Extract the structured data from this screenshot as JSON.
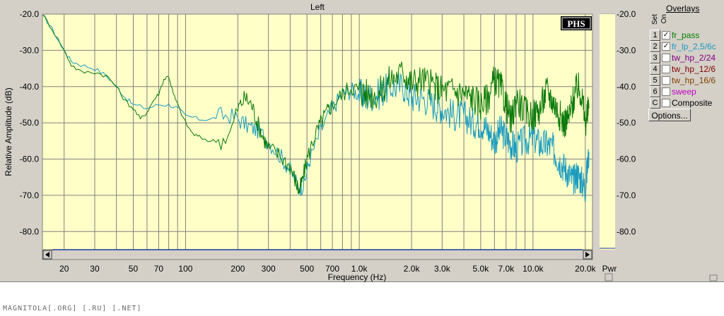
{
  "watermark": "MAGNITOLA[.ORG] [.RU] [.NET]",
  "overlays": {
    "title": "Overlays",
    "set_label": "Set",
    "on_label": "On",
    "options_label": "Options...",
    "items": [
      {
        "num": "1",
        "checked": true,
        "label": "fr_pass",
        "color": "#008000"
      },
      {
        "num": "2",
        "checked": true,
        "label": "fr_lp_2,5/6c",
        "color": "#1a9bc0"
      },
      {
        "num": "3",
        "checked": false,
        "label": "tw_hp_2/24",
        "color": "#800080"
      },
      {
        "num": "4",
        "checked": false,
        "label": "tw_hp_12/6",
        "color": "#800000"
      },
      {
        "num": "5",
        "checked": false,
        "label": "tw_hp_16/6",
        "color": "#804000"
      },
      {
        "num": "6",
        "checked": false,
        "label": "sweep",
        "color": "#c000c0"
      },
      {
        "num": "C",
        "checked": false,
        "label": "Composite",
        "color": "#000000"
      }
    ]
  },
  "pwr_label": "Pwr",
  "chart_data": {
    "type": "line",
    "title": "Left",
    "xlabel": "Frequency (Hz)",
    "ylabel": "Relative Amplitude (dB)",
    "x_scale": "log",
    "xlim": [
      15,
      22000
    ],
    "ylim": [
      -85,
      -20
    ],
    "x_ticks": [
      {
        "v": 20,
        "label": "20"
      },
      {
        "v": 30,
        "label": "30"
      },
      {
        "v": 50,
        "label": "50"
      },
      {
        "v": 70,
        "label": "70"
      },
      {
        "v": 100,
        "label": "100"
      },
      {
        "v": 200,
        "label": "200"
      },
      {
        "v": 300,
        "label": "300"
      },
      {
        "v": 500,
        "label": "500"
      },
      {
        "v": 700,
        "label": "700"
      },
      {
        "v": 1000,
        "label": "1.0k"
      },
      {
        "v": 2000,
        "label": "2.0k"
      },
      {
        "v": 3000,
        "label": "3.0k"
      },
      {
        "v": 5000,
        "label": "5.0k"
      },
      {
        "v": 7000,
        "label": "7.0k"
      },
      {
        "v": 10000,
        "label": "10.0k"
      },
      {
        "v": 20000,
        "label": "20.0k"
      }
    ],
    "y_ticks": [
      {
        "v": -20,
        "label": "-20.0"
      },
      {
        "v": -30,
        "label": "-30.0"
      },
      {
        "v": -40,
        "label": "-40.0"
      },
      {
        "v": -50,
        "label": "-50.0"
      },
      {
        "v": -60,
        "label": "-60.0"
      },
      {
        "v": -70,
        "label": "-70.0"
      },
      {
        "v": -80,
        "label": "-80.0"
      }
    ],
    "grid": true,
    "series": [
      {
        "name": "fr_pass",
        "color": "#0a7a0a",
        "points": [
          [
            15,
            -20
          ],
          [
            17,
            -24
          ],
          [
            20,
            -30
          ],
          [
            22,
            -34
          ],
          [
            25,
            -36
          ],
          [
            30,
            -36
          ],
          [
            35,
            -37
          ],
          [
            40,
            -40
          ],
          [
            45,
            -44
          ],
          [
            50,
            -46
          ],
          [
            55,
            -49
          ],
          [
            60,
            -47
          ],
          [
            65,
            -44
          ],
          [
            70,
            -42
          ],
          [
            75,
            -38
          ],
          [
            80,
            -37
          ],
          [
            85,
            -42
          ],
          [
            90,
            -45
          ],
          [
            100,
            -50
          ],
          [
            110,
            -53
          ],
          [
            120,
            -54
          ],
          [
            140,
            -55
          ],
          [
            160,
            -55
          ],
          [
            180,
            -53
          ],
          [
            200,
            -46
          ],
          [
            220,
            -43
          ],
          [
            240,
            -45
          ],
          [
            260,
            -50
          ],
          [
            280,
            -54
          ],
          [
            300,
            -57
          ],
          [
            350,
            -59
          ],
          [
            400,
            -62
          ],
          [
            430,
            -66
          ],
          [
            450,
            -69
          ],
          [
            470,
            -66
          ],
          [
            500,
            -60
          ],
          [
            550,
            -54
          ],
          [
            600,
            -50
          ],
          [
            650,
            -47
          ],
          [
            700,
            -45
          ],
          [
            800,
            -42
          ],
          [
            900,
            -40
          ],
          [
            1000,
            -41
          ],
          [
            1100,
            -42
          ],
          [
            1300,
            -42
          ],
          [
            1500,
            -38
          ],
          [
            1800,
            -36
          ],
          [
            2000,
            -39
          ],
          [
            2300,
            -38
          ],
          [
            2700,
            -40
          ],
          [
            3000,
            -41
          ],
          [
            3500,
            -41
          ],
          [
            4000,
            -42
          ],
          [
            4500,
            -43
          ],
          [
            5000,
            -45
          ],
          [
            5500,
            -43
          ],
          [
            6000,
            -38
          ],
          [
            6500,
            -40
          ],
          [
            7000,
            -45
          ],
          [
            7500,
            -50
          ],
          [
            8000,
            -43
          ],
          [
            9000,
            -47
          ],
          [
            10000,
            -48
          ],
          [
            11000,
            -46
          ],
          [
            12000,
            -41
          ],
          [
            13000,
            -44
          ],
          [
            14000,
            -47
          ],
          [
            15000,
            -50
          ],
          [
            16000,
            -49
          ],
          [
            17000,
            -44
          ],
          [
            18000,
            -40
          ],
          [
            19000,
            -42
          ],
          [
            20000,
            -50
          ],
          [
            21000,
            -46
          ]
        ]
      },
      {
        "name": "fr_lp_2,5/6c",
        "color": "#1a9bc0",
        "points": [
          [
            15,
            -20
          ],
          [
            17,
            -24
          ],
          [
            20,
            -30
          ],
          [
            22,
            -33
          ],
          [
            25,
            -34
          ],
          [
            30,
            -35
          ],
          [
            35,
            -37
          ],
          [
            40,
            -40
          ],
          [
            45,
            -43
          ],
          [
            50,
            -45
          ],
          [
            60,
            -46
          ],
          [
            70,
            -45
          ],
          [
            80,
            -45
          ],
          [
            90,
            -46
          ],
          [
            100,
            -48
          ],
          [
            120,
            -49
          ],
          [
            140,
            -49
          ],
          [
            160,
            -48
          ],
          [
            180,
            -48
          ],
          [
            200,
            -49
          ],
          [
            230,
            -51
          ],
          [
            260,
            -52
          ],
          [
            300,
            -55
          ],
          [
            350,
            -59
          ],
          [
            400,
            -63
          ],
          [
            450,
            -68
          ],
          [
            480,
            -67
          ],
          [
            520,
            -60
          ],
          [
            600,
            -52
          ],
          [
            700,
            -46
          ],
          [
            800,
            -42
          ],
          [
            900,
            -41
          ],
          [
            1000,
            -42
          ],
          [
            1100,
            -43
          ],
          [
            1300,
            -42
          ],
          [
            1500,
            -40
          ],
          [
            1800,
            -40
          ],
          [
            2000,
            -43
          ],
          [
            2300,
            -43
          ],
          [
            2700,
            -45
          ],
          [
            3000,
            -46
          ],
          [
            3500,
            -48
          ],
          [
            4000,
            -48
          ],
          [
            4500,
            -50
          ],
          [
            5000,
            -50
          ],
          [
            5500,
            -52
          ],
          [
            6000,
            -55
          ],
          [
            6500,
            -52
          ],
          [
            7000,
            -54
          ],
          [
            7500,
            -56
          ],
          [
            8000,
            -57
          ],
          [
            9000,
            -55
          ],
          [
            10000,
            -54
          ],
          [
            11000,
            -56
          ],
          [
            12000,
            -56
          ],
          [
            13000,
            -57
          ],
          [
            14000,
            -60
          ],
          [
            15000,
            -62
          ],
          [
            16000,
            -64
          ],
          [
            17000,
            -66
          ],
          [
            18000,
            -64
          ],
          [
            19000,
            -66
          ],
          [
            20000,
            -68
          ],
          [
            21000,
            -58
          ]
        ]
      }
    ]
  }
}
